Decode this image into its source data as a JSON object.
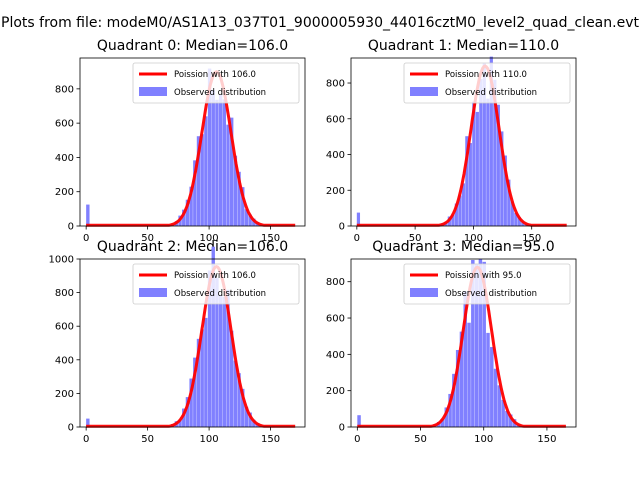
{
  "figure": {
    "suptitle": "Plots from file: modeM0/AS1A13_037T01_9000005930_44016cztM0_level2_quad_clean.evt"
  },
  "colors": {
    "observed": "#8080ff",
    "poisson": "#ff0000"
  },
  "chart_data": [
    {
      "type": "bar",
      "title": "Quadrant 0: Median=106.0",
      "median": 106.0,
      "peak": 900,
      "xlim": [
        -5,
        178
      ],
      "ylim": [
        0,
        980
      ],
      "xticks": [
        0,
        50,
        100,
        150
      ],
      "yticks": [
        0,
        200,
        400,
        600,
        800
      ],
      "zero_bin_count": 125,
      "series": [
        {
          "name": "Poission with 106.0",
          "kind": "line"
        },
        {
          "name": "Observed distribution",
          "kind": "histogram"
        }
      ],
      "legend": "upper right"
    },
    {
      "type": "bar",
      "title": "Quadrant 1: Median=110.0",
      "median": 110.0,
      "peak": 895,
      "xlim": [
        -5,
        188
      ],
      "ylim": [
        0,
        940
      ],
      "xticks": [
        0,
        50,
        100,
        150
      ],
      "yticks": [
        0,
        200,
        400,
        600,
        800
      ],
      "zero_bin_count": 75,
      "series": [
        {
          "name": "Poission with 110.0",
          "kind": "line"
        },
        {
          "name": "Observed distribution",
          "kind": "histogram"
        }
      ],
      "legend": "upper right"
    },
    {
      "type": "bar",
      "title": "Quadrant 2: Median=106.0",
      "median": 106.0,
      "peak": 955,
      "xlim": [
        -5,
        178
      ],
      "ylim": [
        0,
        1000
      ],
      "xticks": [
        0,
        50,
        100,
        150
      ],
      "yticks": [
        0,
        200,
        400,
        600,
        800,
        1000
      ],
      "zero_bin_count": 50,
      "series": [
        {
          "name": "Poission with 106.0",
          "kind": "line"
        },
        {
          "name": "Observed distribution",
          "kind": "histogram"
        }
      ],
      "legend": "upper right"
    },
    {
      "type": "bar",
      "title": "Quadrant 3: Median=95.0",
      "median": 95.0,
      "peak": 880,
      "xlim": [
        -5,
        173
      ],
      "ylim": [
        0,
        925
      ],
      "xticks": [
        0,
        50,
        100,
        150
      ],
      "yticks": [
        0,
        200,
        400,
        600,
        800
      ],
      "zero_bin_count": 65,
      "series": [
        {
          "name": "Poission with 95.0",
          "kind": "line"
        },
        {
          "name": "Observed distribution",
          "kind": "histogram"
        }
      ],
      "legend": "upper right"
    }
  ]
}
